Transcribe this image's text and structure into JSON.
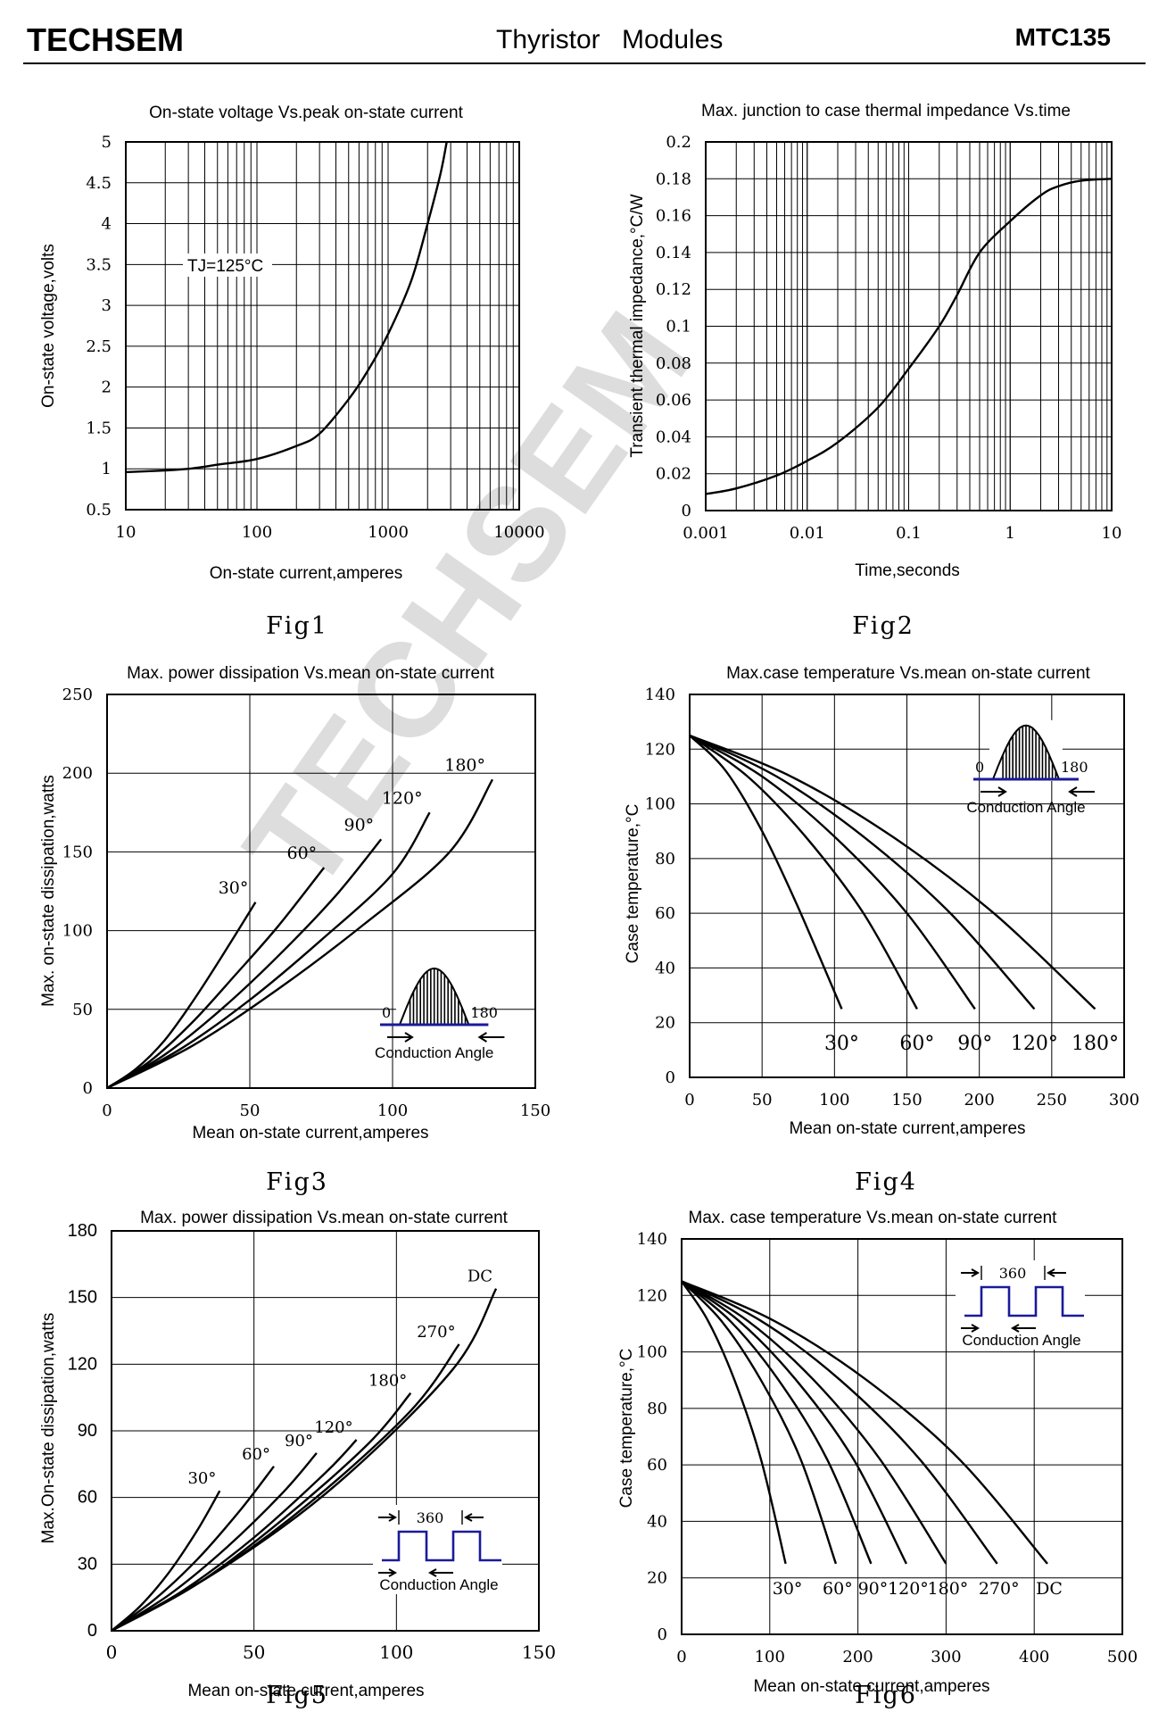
{
  "header": {
    "brand": "TECHSEM",
    "title": "Thyristor Modules",
    "part": "MTC135"
  },
  "watermark": "TECHSEM",
  "colors": {
    "line": "#000000",
    "grid": "#000000",
    "waveform": "#1a1a9a"
  },
  "chart_data": [
    {
      "id": "fig1",
      "type": "line",
      "caption": "Fig1",
      "title": "On-state voltage Vs.peak on-state current",
      "xlabel": "On-state current,amperes",
      "ylabel": "On-state voltage,volts",
      "xscale": "log",
      "xlim": [
        10,
        10000
      ],
      "ylim": [
        0.5,
        5
      ],
      "xticks": [
        "10",
        "100",
        "1000",
        "10000"
      ],
      "yticks": [
        "0.5",
        "1",
        "1.5",
        "2",
        "2.5",
        "3",
        "3.5",
        "4",
        "4.5",
        "5"
      ],
      "annotation": "TJ=125°C",
      "series": [
        {
          "name": "TJ=125°C",
          "x": [
            10,
            20,
            30,
            50,
            100,
            200,
            300,
            500,
            700,
            1000,
            1500,
            2000,
            2500,
            2800
          ],
          "y": [
            0.96,
            0.98,
            1.0,
            1.05,
            1.12,
            1.28,
            1.43,
            1.85,
            2.2,
            2.65,
            3.3,
            4.0,
            4.6,
            5.0
          ]
        }
      ]
    },
    {
      "id": "fig2",
      "type": "line",
      "caption": "Fig2",
      "title": "Max. junction to case thermal impedance Vs.time",
      "xlabel": "Time,seconds",
      "ylabel": "Transient thermal impedance,°C/W",
      "xscale": "log",
      "xlim": [
        0.001,
        10
      ],
      "ylim": [
        0,
        0.2
      ],
      "xticks": [
        "0.001",
        "0.01",
        "0.1",
        "1",
        "10"
      ],
      "yticks": [
        "0",
        "0.02",
        "0.04",
        "0.06",
        "0.08",
        "0.1",
        "0.12",
        "0.14",
        "0.16",
        "0.18",
        "0.2"
      ],
      "series": [
        {
          "name": "Zth",
          "x": [
            0.001,
            0.002,
            0.005,
            0.01,
            0.02,
            0.05,
            0.1,
            0.2,
            0.3,
            0.5,
            1,
            2,
            3,
            5,
            10
          ],
          "y": [
            0.009,
            0.012,
            0.019,
            0.027,
            0.037,
            0.056,
            0.077,
            0.1,
            0.117,
            0.14,
            0.157,
            0.171,
            0.176,
            0.179,
            0.18
          ]
        }
      ]
    },
    {
      "id": "fig3",
      "type": "line",
      "caption": "Fig3",
      "title": "Max. power dissipation Vs.mean on-state current",
      "xlabel": "Mean on-state current,amperes",
      "ylabel": "Max. on-state dissipation,watts",
      "xlim": [
        0,
        150
      ],
      "ylim": [
        0,
        250
      ],
      "xticks": [
        "0",
        "50",
        "100",
        "150"
      ],
      "yticks": [
        "0",
        "50",
        "100",
        "150",
        "200",
        "250"
      ],
      "inset": {
        "type": "half-sine",
        "left": "0",
        "right": "180",
        "label": "Conduction Angle"
      },
      "series": [
        {
          "name": "30°",
          "x": [
            0,
            10,
            20,
            30,
            40,
            52
          ],
          "y": [
            0,
            12,
            30,
            55,
            83,
            118
          ]
        },
        {
          "name": "60°",
          "x": [
            0,
            15,
            30,
            45,
            60,
            76
          ],
          "y": [
            0,
            17,
            42,
            72,
            103,
            140
          ]
        },
        {
          "name": "90°",
          "x": [
            0,
            20,
            40,
            60,
            80,
            96
          ],
          "y": [
            0,
            21,
            50,
            84,
            122,
            158
          ]
        },
        {
          "name": "120°",
          "x": [
            0,
            25,
            50,
            75,
            100,
            113
          ],
          "y": [
            0,
            24,
            56,
            94,
            136,
            175
          ]
        },
        {
          "name": "180°",
          "x": [
            0,
            30,
            60,
            90,
            120,
            135
          ],
          "y": [
            0,
            27,
            63,
            104,
            150,
            196
          ]
        }
      ]
    },
    {
      "id": "fig4",
      "type": "line",
      "caption": "Fig4",
      "title": "Max.case temperature Vs.mean on-state current",
      "xlabel": "Mean on-state current,amperes",
      "ylabel": "Case temperature,°C",
      "xlim": [
        0,
        300
      ],
      "ylim": [
        0,
        140
      ],
      "xticks": [
        "0",
        "50",
        "100",
        "150",
        "200",
        "250",
        "300"
      ],
      "yticks": [
        "0",
        "20",
        "40",
        "60",
        "80",
        "100",
        "120",
        "140"
      ],
      "inset": {
        "type": "half-sine",
        "left": "0",
        "right": "180",
        "label": "Conduction Angle"
      },
      "series": [
        {
          "name": "30°",
          "x": [
            0,
            25,
            50,
            75,
            105
          ],
          "y": [
            125,
            112,
            90,
            62,
            25
          ]
        },
        {
          "name": "60°",
          "x": [
            0,
            40,
            80,
            120,
            157
          ],
          "y": [
            125,
            110,
            88,
            60,
            25
          ]
        },
        {
          "name": "90°",
          "x": [
            0,
            50,
            100,
            150,
            197
          ],
          "y": [
            125,
            110,
            88,
            60,
            25
          ]
        },
        {
          "name": "120°",
          "x": [
            0,
            60,
            120,
            180,
            238
          ],
          "y": [
            125,
            110,
            88,
            60,
            25
          ]
        },
        {
          "name": "180°",
          "x": [
            0,
            70,
            140,
            210,
            280
          ],
          "y": [
            125,
            110,
            88,
            60,
            25
          ]
        }
      ],
      "curve_labels": [
        "30°",
        "60°",
        "90°",
        "120°",
        "180°"
      ]
    },
    {
      "id": "fig5",
      "type": "line",
      "caption": "Fig5",
      "title": "Max. power dissipation Vs.mean on-state current",
      "xlabel": "Mean on-state current,amperes",
      "ylabel": "Max.On-state dissipation,watts",
      "xlim": [
        0,
        150
      ],
      "ylim": [
        0,
        180
      ],
      "xticks": [
        "0",
        "50",
        "100",
        "150"
      ],
      "yticks": [
        "0",
        "30",
        "60",
        "90",
        "120",
        "150",
        "180"
      ],
      "inset": {
        "type": "square-wave",
        "period": "360",
        "label": "Conduction Angle"
      },
      "series": [
        {
          "name": "30°",
          "x": [
            0,
            10,
            20,
            30,
            38
          ],
          "y": [
            0,
            11,
            26,
            45,
            63
          ]
        },
        {
          "name": "60°",
          "x": [
            0,
            15,
            30,
            45,
            57
          ],
          "y": [
            0,
            14,
            32,
            54,
            74
          ]
        },
        {
          "name": "90°",
          "x": [
            0,
            20,
            40,
            60,
            72
          ],
          "y": [
            0,
            16,
            37,
            62,
            80
          ]
        },
        {
          "name": "120°",
          "x": [
            0,
            25,
            50,
            75,
            86
          ],
          "y": [
            0,
            18,
            42,
            71,
            86
          ]
        },
        {
          "name": "180°",
          "x": [
            0,
            30,
            60,
            90,
            105
          ],
          "y": [
            0,
            21,
            50,
            84,
            107
          ]
        },
        {
          "name": "270°",
          "x": [
            0,
            35,
            70,
            105,
            122
          ],
          "y": [
            0,
            25,
            58,
            99,
            129
          ]
        },
        {
          "name": "DC",
          "x": [
            0,
            40,
            80,
            120,
            135
          ],
          "y": [
            0,
            29,
            67,
            118,
            154
          ]
        }
      ]
    },
    {
      "id": "fig6",
      "type": "line",
      "caption": "Fig6",
      "title": "Max. case temperature Vs.mean on-state current",
      "xlabel": "Mean on-state current,amperes",
      "ylabel": "Case temperature,°C",
      "xlim": [
        0,
        500
      ],
      "ylim": [
        0,
        140
      ],
      "xticks": [
        "0",
        "100",
        "200",
        "300",
        "400",
        "500"
      ],
      "yticks": [
        "0",
        "20",
        "40",
        "60",
        "80",
        "100",
        "120",
        "140"
      ],
      "inset": {
        "type": "square-wave",
        "period": "360",
        "label": "Conduction Angle"
      },
      "series": [
        {
          "name": "30°",
          "x": [
            0,
            30,
            60,
            90,
            118
          ],
          "y": [
            125,
            111,
            90,
            62,
            25
          ]
        },
        {
          "name": "60°",
          "x": [
            0,
            45,
            90,
            135,
            175
          ],
          "y": [
            125,
            111,
            90,
            62,
            25
          ]
        },
        {
          "name": "90°",
          "x": [
            0,
            55,
            110,
            165,
            215
          ],
          "y": [
            125,
            111,
            90,
            62,
            25
          ]
        },
        {
          "name": "120°",
          "x": [
            0,
            65,
            130,
            195,
            255
          ],
          "y": [
            125,
            111,
            90,
            62,
            25
          ]
        },
        {
          "name": "180°",
          "x": [
            0,
            75,
            150,
            225,
            300
          ],
          "y": [
            125,
            111,
            90,
            62,
            25
          ]
        },
        {
          "name": "270°",
          "x": [
            0,
            90,
            180,
            270,
            358
          ],
          "y": [
            125,
            111,
            90,
            62,
            25
          ]
        },
        {
          "name": "DC",
          "x": [
            0,
            105,
            210,
            315,
            415
          ],
          "y": [
            125,
            111,
            90,
            62,
            25
          ]
        }
      ],
      "curve_labels": [
        "30°",
        "60°",
        "90°",
        "120°",
        "180°",
        "270°",
        "DC"
      ]
    }
  ]
}
